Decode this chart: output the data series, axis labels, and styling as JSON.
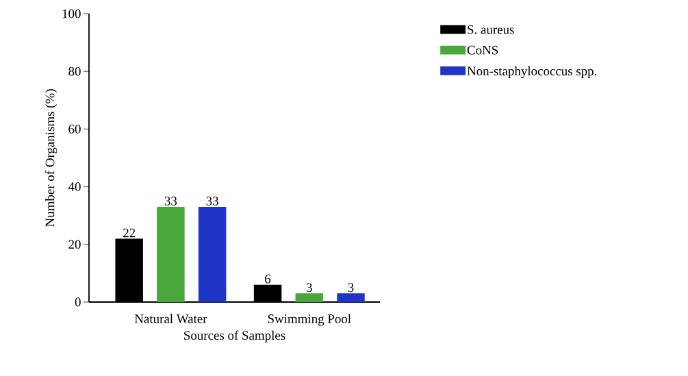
{
  "chart_data": {
    "type": "bar",
    "xlabel": "Sources of Samples",
    "ylabel": "Number of Organisms (%)",
    "categories": [
      "Natural Water",
      "Swimming Pool"
    ],
    "series": [
      {
        "name": "S. aureus",
        "color": "#000000",
        "values": [
          22,
          6
        ]
      },
      {
        "name": "CoNS",
        "color": "#4aa83a",
        "values": [
          33,
          3
        ]
      },
      {
        "name": "Non-staphylococcus spp.",
        "color": "#1f35c8",
        "values": [
          33,
          3
        ]
      }
    ],
    "ylim": [
      0,
      100
    ],
    "yticks": [
      0,
      20,
      40,
      60,
      80,
      100
    ],
    "grid": false,
    "legend": "top right",
    "data_labels": true
  }
}
